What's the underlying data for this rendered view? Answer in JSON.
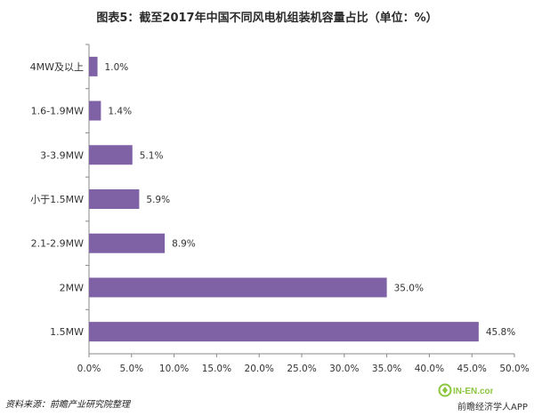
{
  "title": "图表5：截至2017年中国不同风电机组装机容量占比（单位：%）",
  "chart_data": {
    "type": "bar",
    "orientation": "horizontal",
    "title": "图表5：截至2017年中国不同风电机组装机容量占比（单位：%）",
    "categories": [
      "4MW及以上",
      "1.6-1.9MW",
      "3-3.9MW",
      "小于1.5MW",
      "2.1-2.9MW",
      "2MW",
      "1.5MW"
    ],
    "values": [
      1.0,
      1.4,
      5.1,
      5.9,
      8.9,
      35.0,
      45.8
    ],
    "value_labels": [
      "1.0%",
      "1.4%",
      "5.1%",
      "5.9%",
      "8.9%",
      "35.0%",
      "45.8%"
    ],
    "xlim": [
      0,
      50
    ],
    "x_ticks": [
      "0.0%",
      "5.0%",
      "10.0%",
      "15.0%",
      "20.0%",
      "25.0%",
      "30.0%",
      "35.0%",
      "40.0%",
      "45.0%",
      "50.0%"
    ],
    "grid": false,
    "xlabel": "",
    "ylabel": "",
    "bar_color": "#7f62a6"
  },
  "source": "资料来源：前瞻产业研究院整理",
  "watermark": "前瞻经济学人APP",
  "logo_text": "IN-EN.com"
}
